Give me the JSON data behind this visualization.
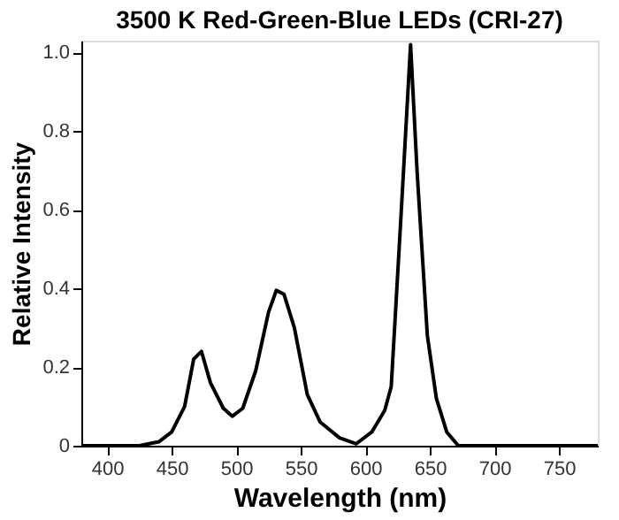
{
  "chart_data": {
    "type": "line",
    "title": "3500 K Red-Green-Blue LEDs (CRI-27)",
    "xlabel": "Wavelength (nm)",
    "ylabel": "Relative Intensity",
    "x": [
      380,
      425,
      440,
      450,
      460,
      467,
      473,
      480,
      490,
      497,
      505,
      515,
      525,
      531,
      537,
      545,
      555,
      565,
      580,
      593,
      605,
      615,
      620,
      627,
      635,
      640,
      648,
      655,
      663,
      672,
      780
    ],
    "series": [
      {
        "color": "#000000",
        "values": [
          0,
          0,
          0.01,
          0.035,
          0.1,
          0.22,
          0.24,
          0.16,
          0.095,
          0.075,
          0.095,
          0.19,
          0.34,
          0.395,
          0.385,
          0.3,
          0.13,
          0.06,
          0.02,
          0.005,
          0.035,
          0.09,
          0.15,
          0.55,
          1.02,
          0.7,
          0.28,
          0.12,
          0.035,
          0,
          0
        ]
      }
    ],
    "xlim": [
      380,
      780
    ],
    "xticks": [
      400,
      450,
      500,
      550,
      600,
      650,
      700,
      750
    ],
    "ylim": [
      0,
      1.03
    ],
    "yticks": [
      0,
      {
        "value": 0.2,
        "label": "0.2"
      },
      {
        "value": 0.4,
        "label": "0.4"
      },
      {
        "value": 0.6,
        "label": "0.6"
      },
      {
        "value": 0.8,
        "label": "0.8"
      },
      {
        "value": 1.0,
        "label": "1.0"
      }
    ],
    "grid": false,
    "marker": "none",
    "line_style": "solid"
  }
}
